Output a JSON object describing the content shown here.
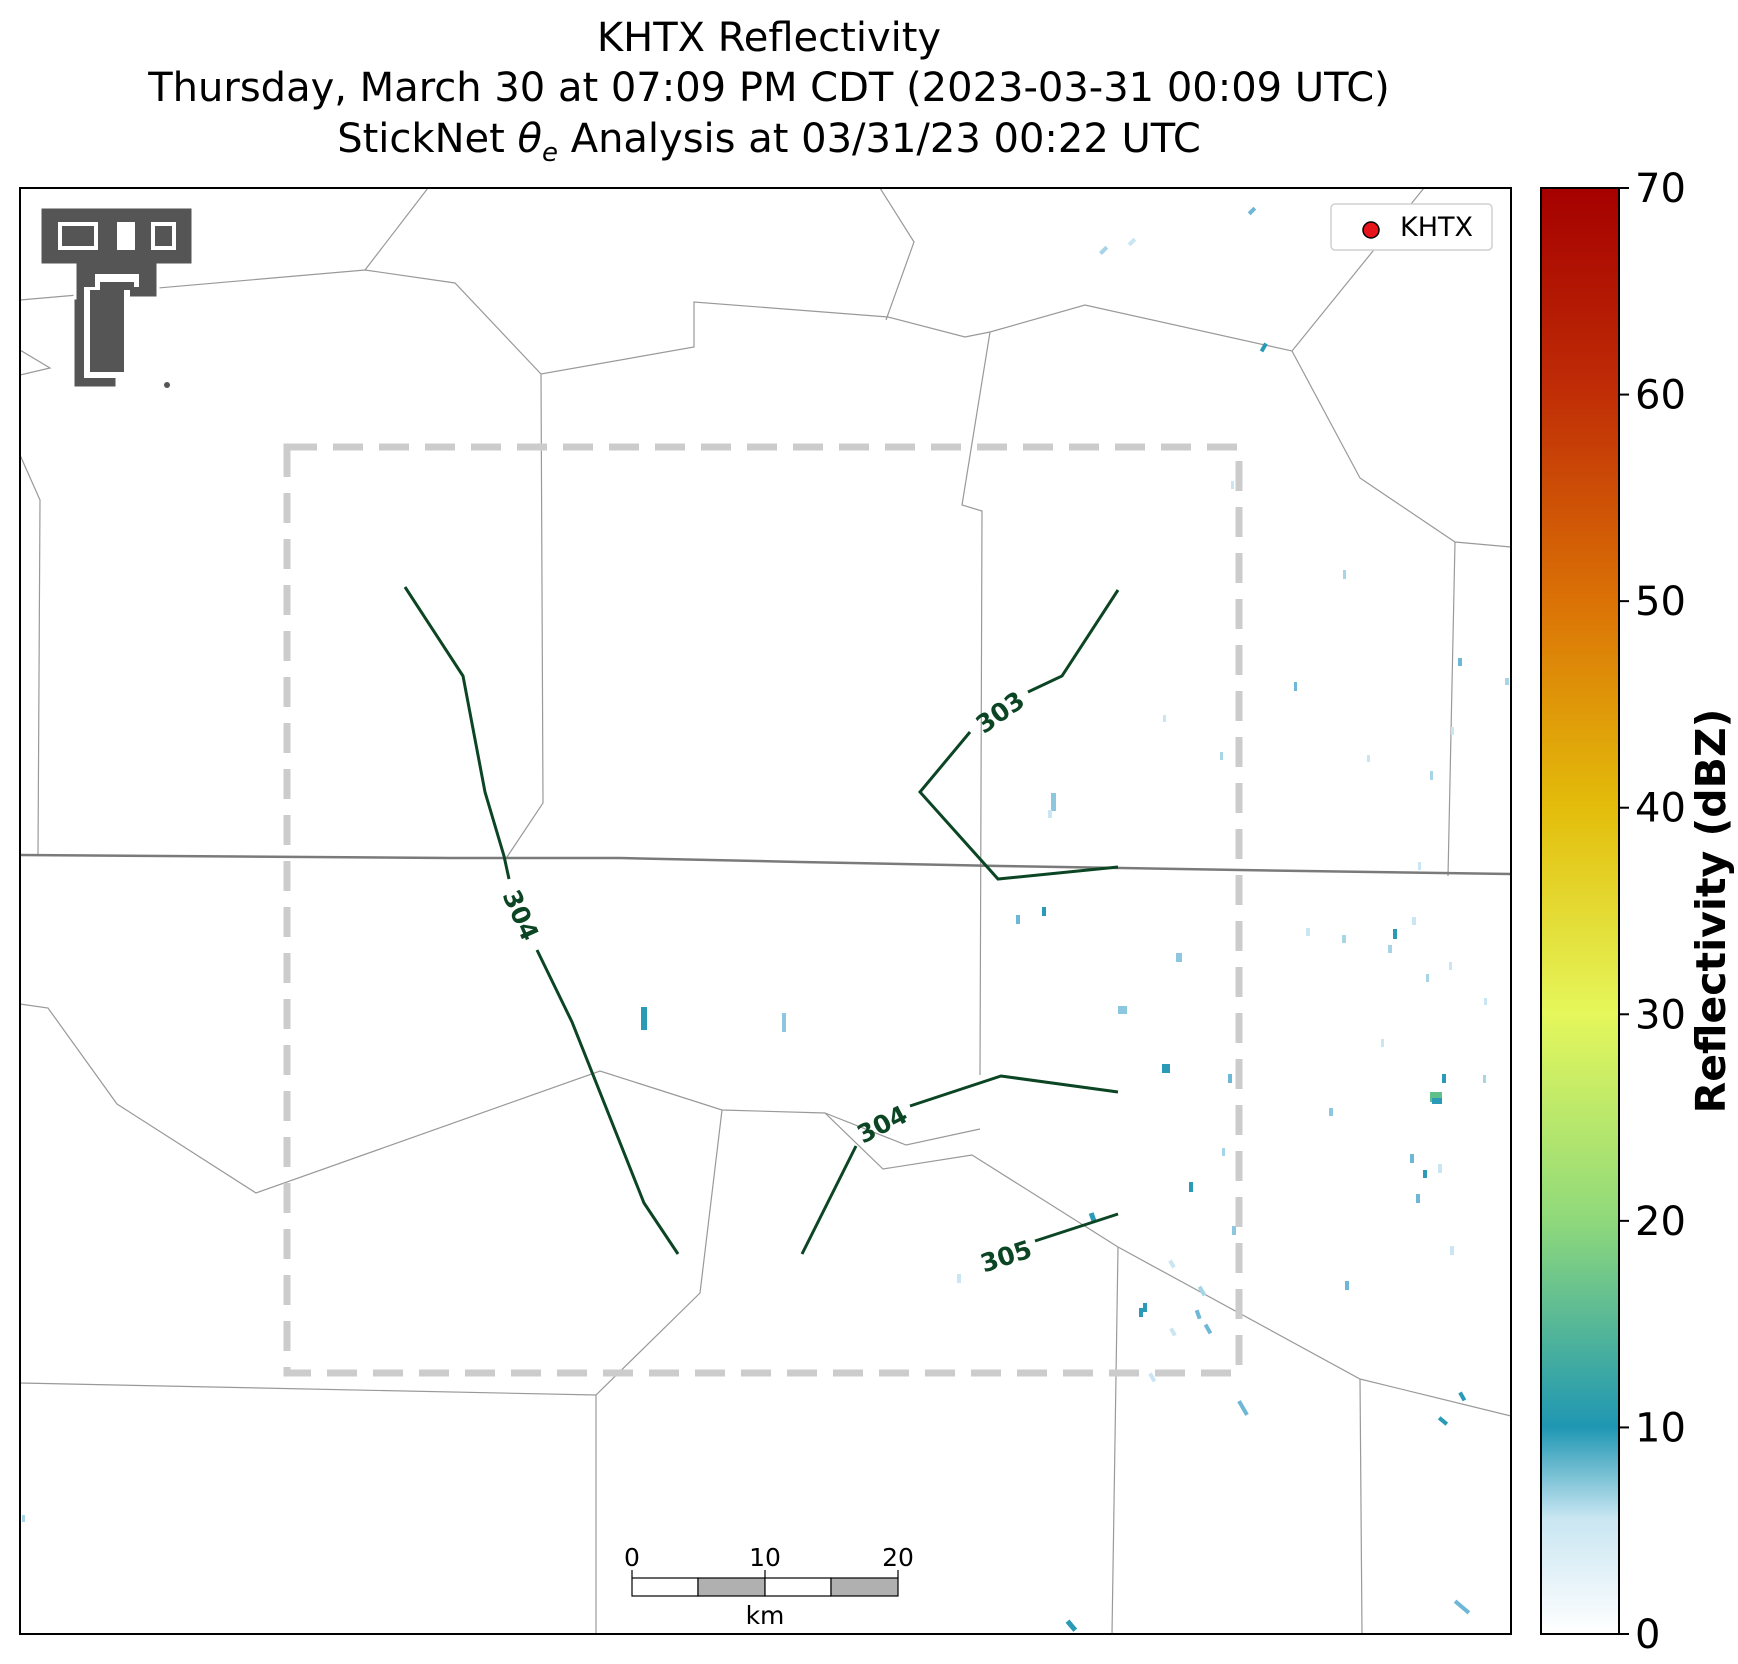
{
  "title": {
    "line1": "KHTX Reflectivity",
    "line2": "Thursday, March 30 at 07:09 PM CDT (2023-03-31 00:09 UTC)",
    "line3_prefix": "StickNet ",
    "line3_symbol": "θ",
    "line3_subscript": "e",
    "line3_suffix": " Analysis at 03/31/23 00:22 UTC"
  },
  "legend": {
    "label": "KHTX",
    "marker_color": "#e8141c"
  },
  "colorbar": {
    "label": "Reflectivity (dBZ)",
    "ticks": [
      "0",
      "10",
      "20",
      "30",
      "40",
      "50",
      "60",
      "70"
    ],
    "range": [
      0,
      70
    ],
    "colors": [
      "#ffffff",
      "#1f97b3",
      "#8fd97b",
      "#e5f75b",
      "#e3bd0b",
      "#db7206",
      "#c02e06",
      "#a50000"
    ]
  },
  "contours": {
    "color": "#0b4523",
    "labels": [
      "304",
      "303",
      "304",
      "305"
    ]
  },
  "scale_bar": {
    "ticks": [
      "0",
      "10",
      "20"
    ],
    "unit": "km"
  },
  "logo": {
    "name": "Texas Tech Double T",
    "color": "#555555"
  },
  "analysis_box": {
    "style": "dashed",
    "color": "#cccccc"
  }
}
